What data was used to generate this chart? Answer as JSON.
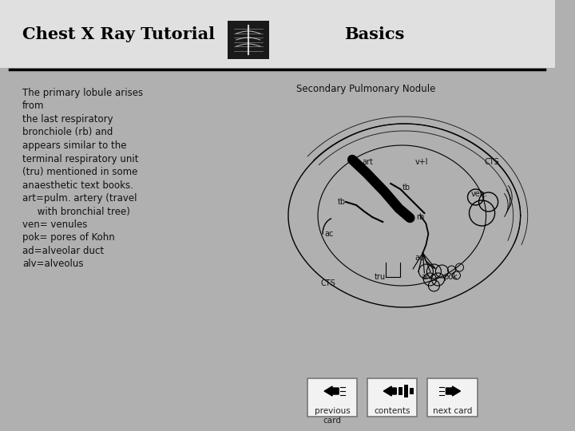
{
  "title": "Chest X Ray Tutorial",
  "subtitle": "Basics",
  "outer_bg": "#b0b0b0",
  "slide_bg": "#ffffff",
  "header_bg": "#e0e0e0",
  "body_text_lines": [
    "The primary lobule arises",
    "from",
    "the last respiratory",
    "bronchiole (rb) and",
    "appears similar to the",
    "terminal respiratory unit",
    "(tru) mentioned in some",
    "anaesthetic text books.",
    "art=pulm. artery (travel",
    "     with bronchial tree)",
    "ven= venules",
    "pok= pores of Kohn",
    "ad=alveolar duct",
    "alv=alveolus"
  ],
  "diagram_label": "Secondary Pulmonary Nodule",
  "nav_labels": [
    "previous\ncard",
    "contents",
    "next card"
  ],
  "title_fontsize": 15,
  "body_fontsize": 8.5,
  "diag_label_fontsize": 8.5,
  "nav_fontsize": 7.5
}
